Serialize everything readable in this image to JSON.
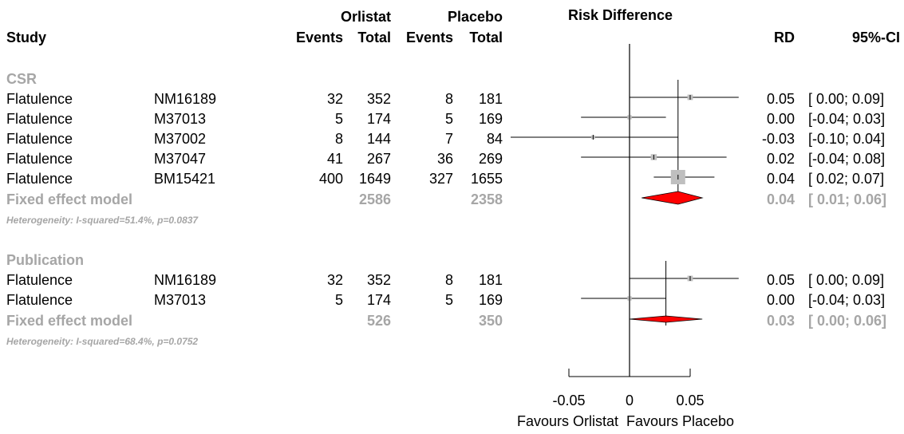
{
  "chart_data": {
    "type": "forest",
    "header": {
      "study": "Study",
      "group1": "Orlistat",
      "group2": "Placebo",
      "events": "Events",
      "total": "Total",
      "plot_title": "Risk Difference",
      "rd": "RD",
      "ci": "95%-CI"
    },
    "subgroups": [
      {
        "name": "CSR",
        "studies": [
          {
            "outcome": "Flatulence",
            "id": "NM16189",
            "e1": "32",
            "t1": "352",
            "e2": "8",
            "t2": "181",
            "rd": 0.05,
            "lo": 0.0,
            "hi": 0.09,
            "rd_text": "0.05",
            "ci_text": "[ 0.00; 0.09]",
            "weight": 0.2
          },
          {
            "outcome": "Flatulence",
            "id": "M37013",
            "e1": "5",
            "t1": "174",
            "e2": "5",
            "t2": "169",
            "rd": 0.0,
            "lo": -0.04,
            "hi": 0.03,
            "rd_text": "0.00",
            "ci_text": "[-0.04; 0.03]",
            "weight": 0.1
          },
          {
            "outcome": "Flatulence",
            "id": "M37002",
            "e1": "8",
            "t1": "144",
            "e2": "7",
            "t2": "84",
            "rd": -0.03,
            "lo": -0.1,
            "hi": 0.04,
            "rd_text": "-0.03",
            "ci_text": "[-0.10; 0.04]",
            "weight": 0.05
          },
          {
            "outcome": "Flatulence",
            "id": "M37047",
            "e1": "41",
            "t1": "267",
            "e2": "36",
            "t2": "269",
            "rd": 0.02,
            "lo": -0.04,
            "hi": 0.08,
            "rd_text": "0.02",
            "ci_text": "[-0.04; 0.08]",
            "weight": 0.25
          },
          {
            "outcome": "Flatulence",
            "id": "BM15421",
            "e1": "400",
            "t1": "1649",
            "e2": "327",
            "t2": "1655",
            "rd": 0.04,
            "lo": 0.02,
            "hi": 0.07,
            "rd_text": "0.04",
            "ci_text": "[ 0.02; 0.07]",
            "weight": 1.0
          }
        ],
        "pooled": {
          "label": "Fixed effect model",
          "t1": "2586",
          "t2": "2358",
          "rd": 0.04,
          "lo": 0.01,
          "hi": 0.06,
          "rd_text": "0.04",
          "ci_text": "[ 0.01; 0.06]"
        },
        "heterogeneity": "Heterogeneity: I-squared=51.4%, p=0.0837"
      },
      {
        "name": "Publication",
        "studies": [
          {
            "outcome": "Flatulence",
            "id": "NM16189",
            "e1": "32",
            "t1": "352",
            "e2": "8",
            "t2": "181",
            "rd": 0.05,
            "lo": 0.0,
            "hi": 0.09,
            "rd_text": "0.05",
            "ci_text": "[ 0.00; 0.09]",
            "weight": 0.2
          },
          {
            "outcome": "Flatulence",
            "id": "M37013",
            "e1": "5",
            "t1": "174",
            "e2": "5",
            "t2": "169",
            "rd": 0.0,
            "lo": -0.04,
            "hi": 0.03,
            "rd_text": "0.00",
            "ci_text": "[-0.04; 0.03]",
            "weight": 0.1
          }
        ],
        "pooled": {
          "label": "Fixed effect model",
          "t1": "526",
          "t2": "350",
          "rd": 0.03,
          "lo": 0.0,
          "hi": 0.06,
          "rd_text": "0.03",
          "ci_text": "[ 0.00; 0.06]"
        },
        "heterogeneity": "Heterogeneity: I-squared=68.4%, p=0.0752"
      }
    ],
    "x_axis": {
      "range": [
        -0.05,
        0.05
      ],
      "ticks": [
        "-0.05",
        "0",
        "0.05"
      ],
      "tick_values": [
        -0.05,
        0,
        0.05
      ]
    },
    "favours_left": "Favours Orlistat",
    "favours_right": "Favours Placebo",
    "colors": {
      "pooled": "#ff0000",
      "square": "#bfbfbf",
      "grey_text": "#a6a6a6"
    }
  }
}
